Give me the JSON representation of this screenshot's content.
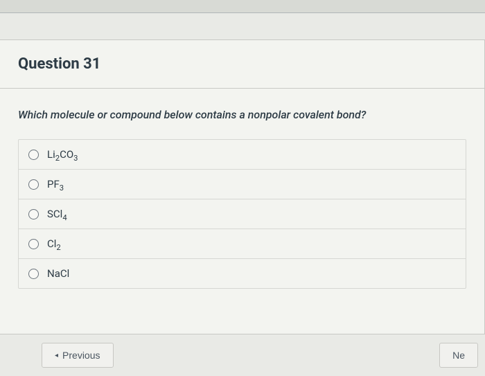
{
  "question": {
    "number": 31,
    "title_prefix": "Question",
    "prompt": "Which molecule or compound below contains a nonpolar covalent bond?",
    "options": [
      {
        "formula_html": "Li<sub>2</sub>CO<sub>3</sub>"
      },
      {
        "formula_html": "PF<sub>3</sub>"
      },
      {
        "formula_html": "SCl<sub>4</sub>"
      },
      {
        "formula_html": "Cl<sub>2</sub>"
      },
      {
        "formula_html": "NaCl"
      }
    ]
  },
  "nav": {
    "previous_label": "Previous",
    "next_label": "Ne",
    "prev_arrow": "◂",
    "next_arrow": ""
  },
  "colors": {
    "page_bg": "#d8dad5",
    "card_bg": "#f3f4f0",
    "border": "#c8c9c5",
    "text": "#2d3b45"
  }
}
